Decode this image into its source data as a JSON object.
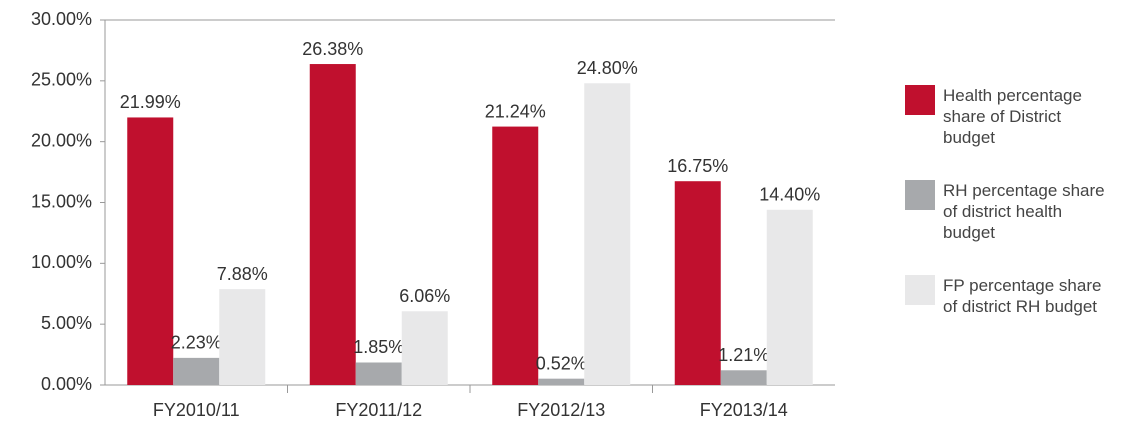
{
  "chart_data": {
    "type": "bar",
    "categories": [
      "FY2010/11",
      "FY2011/12",
      "FY2012/13",
      "FY2013/14"
    ],
    "series": [
      {
        "name": "Health percentage share of District budget",
        "color": "#c0102e",
        "values": [
          21.99,
          26.38,
          21.24,
          16.75
        ],
        "value_labels": [
          "21.99%",
          "26.38%",
          "21.24%",
          "16.75%"
        ]
      },
      {
        "name": "RH percentage share of district health budget",
        "color": "#a7a9ac",
        "values": [
          2.23,
          1.85,
          0.52,
          1.21
        ],
        "value_labels": [
          "2.23%",
          "1.85%",
          "0.52%",
          "1.21%"
        ]
      },
      {
        "name": "FP percentage share of district RH budget",
        "color": "#e8e8e9",
        "values": [
          7.88,
          6.06,
          24.8,
          14.4
        ],
        "value_labels": [
          "7.88%",
          "6.06%",
          "24.80%",
          "14.40%"
        ]
      }
    ],
    "ylim": [
      0,
      30
    ],
    "yticks": [
      {
        "value": 0,
        "label": "0.00%"
      },
      {
        "value": 5,
        "label": "5.00%"
      },
      {
        "value": 10,
        "label": "10.00%"
      },
      {
        "value": 15,
        "label": "15.00%"
      },
      {
        "value": 20,
        "label": "20.00%"
      },
      {
        "value": 25,
        "label": "25.00%"
      },
      {
        "value": 30,
        "label": "30.00%"
      }
    ],
    "legend": "right",
    "grid": false
  }
}
